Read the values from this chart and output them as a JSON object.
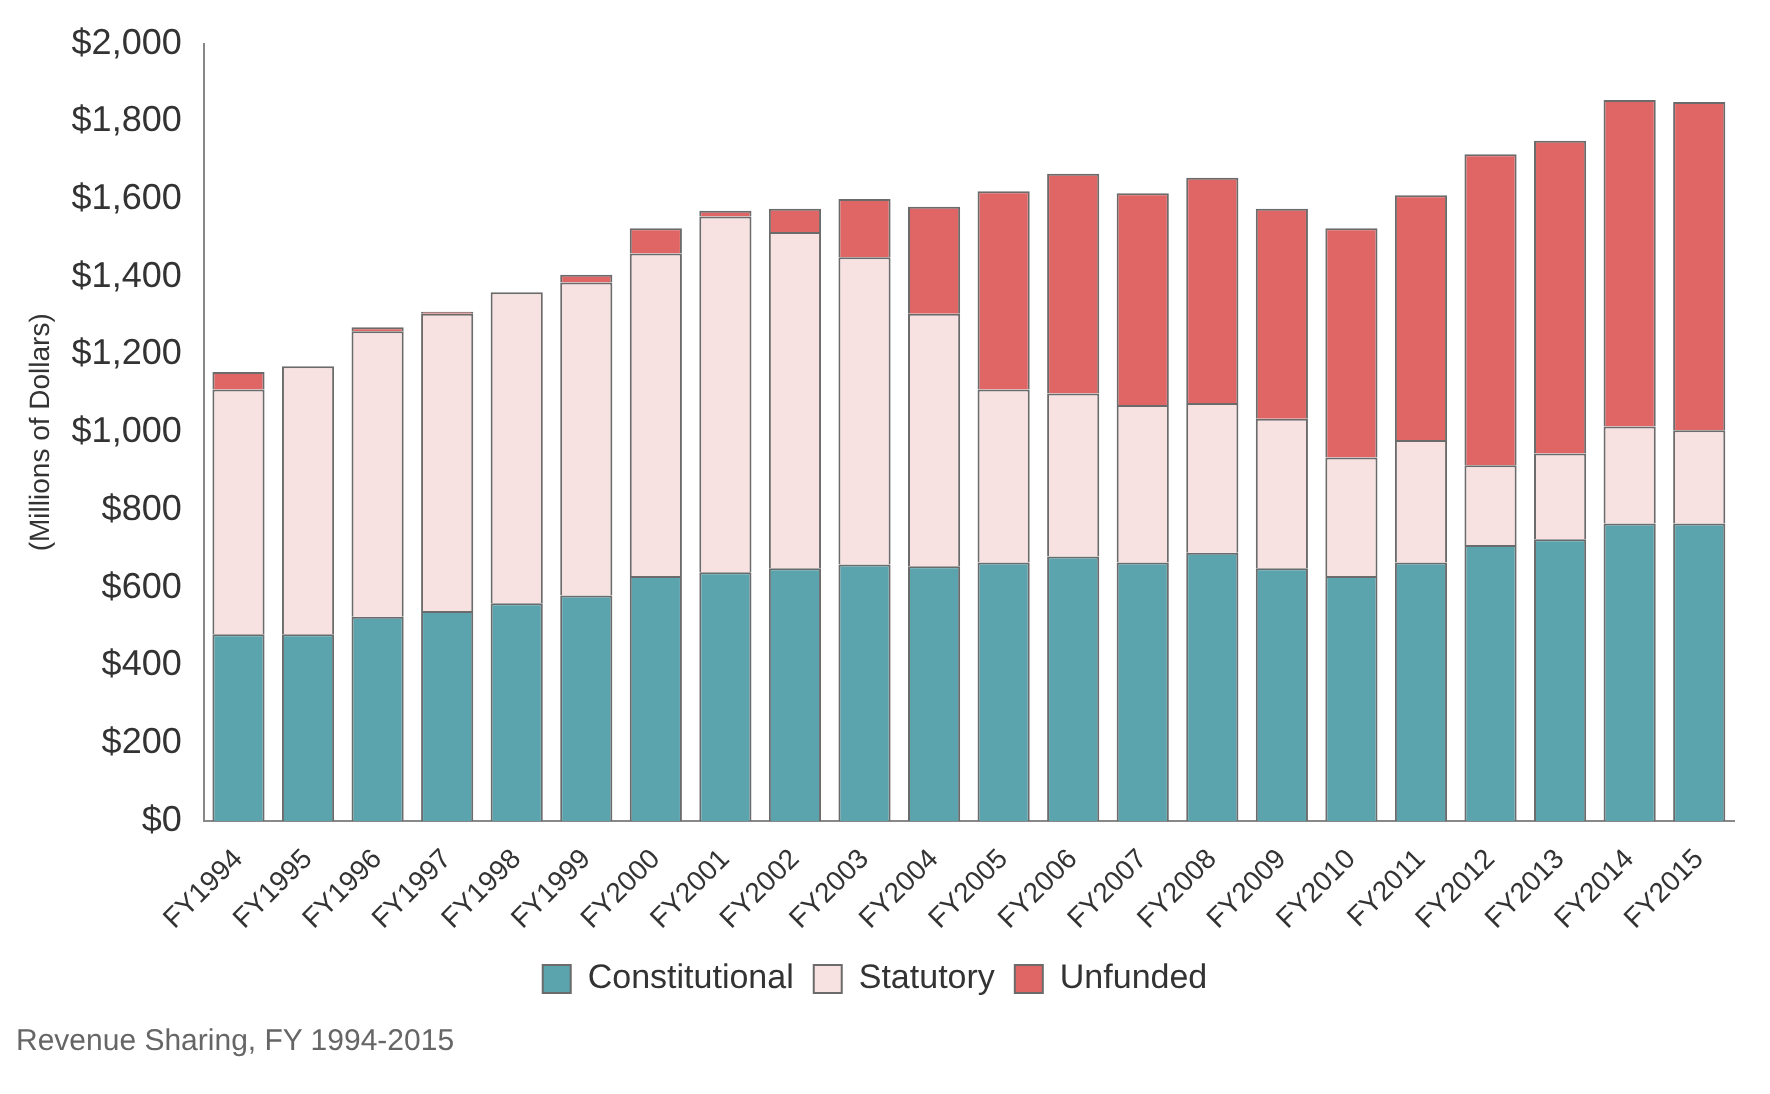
{
  "chart_data": {
    "type": "bar",
    "stacked": true,
    "ylabel": "(Millions of Dollars)",
    "categories": [
      "FY1994",
      "FY1995",
      "FY1996",
      "FY1997",
      "FY1998",
      "FY1999",
      "FY2000",
      "FY2001",
      "FY2002",
      "FY2003",
      "FY2004",
      "FY2005",
      "FY2006",
      "FY2007",
      "FY2008",
      "FY2009",
      "FY2010",
      "FY2011",
      "FY2012",
      "FY2013",
      "FY2014",
      "FY2015"
    ],
    "series": [
      {
        "name": "Constitutional",
        "color": "#5ba3ad",
        "values": [
          480,
          480,
          525,
          540,
          560,
          580,
          630,
          640,
          650,
          660,
          655,
          665,
          680,
          665,
          690,
          650,
          630,
          665,
          710,
          725,
          765,
          765
        ]
      },
      {
        "name": "Statutory",
        "color": "#f8e1e1",
        "values": [
          630,
          690,
          735,
          765,
          800,
          805,
          830,
          915,
          865,
          790,
          650,
          445,
          420,
          405,
          385,
          385,
          305,
          315,
          205,
          220,
          250,
          240
        ]
      },
      {
        "name": "Unfunded",
        "color": "#e06666",
        "values": [
          45,
          0,
          10,
          5,
          0,
          20,
          65,
          15,
          60,
          150,
          275,
          510,
          565,
          545,
          580,
          540,
          590,
          630,
          800,
          805,
          840,
          845
        ]
      }
    ],
    "ylim": [
      0,
      2000
    ],
    "yticks": [
      {
        "value": 0,
        "label": "$0"
      },
      {
        "value": 200,
        "label": "$200"
      },
      {
        "value": 400,
        "label": "$400"
      },
      {
        "value": 600,
        "label": "$600"
      },
      {
        "value": 800,
        "label": "$800"
      },
      {
        "value": 1000,
        "label": "$1,000"
      },
      {
        "value": 1200,
        "label": "$1,200"
      },
      {
        "value": 1400,
        "label": "$1,400"
      },
      {
        "value": 1600,
        "label": "$1,600"
      },
      {
        "value": 1800,
        "label": "$1,800"
      },
      {
        "value": 2000,
        "label": "$2,000"
      }
    ],
    "grid": false,
    "legend": "bottom",
    "annotations": [
      "Revenue Sharing, FY 1994-2015"
    ]
  }
}
